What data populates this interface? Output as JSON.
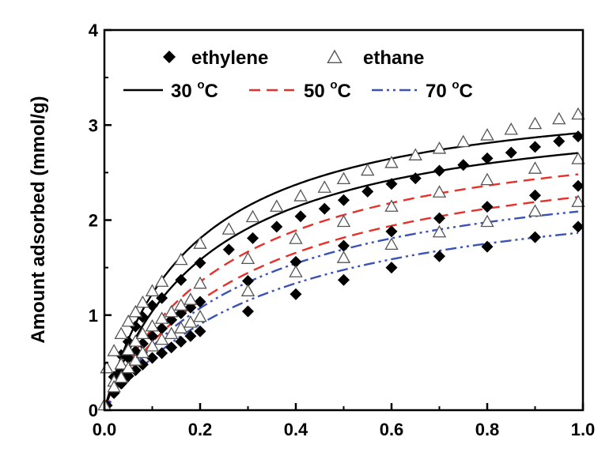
{
  "chart_data": {
    "type": "scatter",
    "xlim": [
      0,
      1.0
    ],
    "ylim": [
      0,
      4
    ],
    "x_ticks": [
      "0.0",
      "0.2",
      "0.4",
      "0.6",
      "0.8",
      "1.0"
    ],
    "y_ticks": [
      "0",
      "1",
      "2",
      "3",
      "4"
    ],
    "ylabel": "Amount adsorbed (mmol/g)",
    "xlabel": "",
    "grid": false,
    "legend": {
      "placement": "top-left",
      "markers": [
        {
          "label": "ethylene",
          "marker": "filled-diamond"
        },
        {
          "label": "ethane",
          "marker": "open-triangle"
        }
      ],
      "lines": [
        {
          "label": "30",
          "unit": "C",
          "degree": "o",
          "style": "solid",
          "color": "#000000"
        },
        {
          "label": "50",
          "unit": "C",
          "degree": "o",
          "style": "dashed",
          "color": "#e8302a"
        },
        {
          "label": "70",
          "unit": "C",
          "degree": "o",
          "style": "dash-dot-dot",
          "color": "#3a52b4"
        }
      ]
    },
    "series": [
      {
        "gas": "ethylene",
        "temperature": 30,
        "marker": "filled-diamond",
        "x": [
          0.005,
          0.02,
          0.035,
          0.05,
          0.065,
          0.08,
          0.1,
          0.12,
          0.16,
          0.2,
          0.26,
          0.31,
          0.36,
          0.41,
          0.46,
          0.5,
          0.55,
          0.6,
          0.65,
          0.7,
          0.75,
          0.8,
          0.85,
          0.9,
          0.95,
          0.99
        ],
        "y": [
          0.05,
          0.35,
          0.58,
          0.72,
          0.88,
          0.98,
          1.1,
          1.18,
          1.37,
          1.55,
          1.69,
          1.81,
          1.93,
          2.04,
          2.12,
          2.21,
          2.3,
          2.38,
          2.44,
          2.52,
          2.58,
          2.65,
          2.71,
          2.77,
          2.83,
          2.88
        ]
      },
      {
        "gas": "ethane",
        "temperature": 30,
        "marker": "open-triangle",
        "x": [
          0.0,
          0.005,
          0.02,
          0.035,
          0.05,
          0.065,
          0.08,
          0.1,
          0.12,
          0.16,
          0.2,
          0.26,
          0.31,
          0.36,
          0.41,
          0.46,
          0.5,
          0.55,
          0.6,
          0.65,
          0.7,
          0.75,
          0.8,
          0.85,
          0.9,
          0.95,
          0.99
        ],
        "y": [
          0.05,
          0.44,
          0.62,
          0.8,
          0.93,
          1.03,
          1.13,
          1.25,
          1.35,
          1.58,
          1.75,
          1.9,
          2.03,
          2.14,
          2.25,
          2.34,
          2.43,
          2.52,
          2.6,
          2.68,
          2.75,
          2.82,
          2.89,
          2.95,
          3.01,
          3.06,
          3.11
        ]
      },
      {
        "gas": "ethylene",
        "temperature": 50,
        "marker": "filled-diamond",
        "x": [
          0.02,
          0.035,
          0.05,
          0.065,
          0.08,
          0.1,
          0.12,
          0.14,
          0.16,
          0.18,
          0.2,
          0.3,
          0.4,
          0.5,
          0.6,
          0.7,
          0.8,
          0.9,
          0.99
        ],
        "y": [
          0.2,
          0.4,
          0.55,
          0.62,
          0.7,
          0.78,
          0.86,
          0.95,
          1.02,
          1.08,
          1.14,
          1.36,
          1.56,
          1.73,
          1.88,
          2.02,
          2.14,
          2.26,
          2.36
        ]
      },
      {
        "gas": "ethane",
        "temperature": 50,
        "marker": "open-triangle",
        "x": [
          0.02,
          0.035,
          0.05,
          0.065,
          0.08,
          0.1,
          0.12,
          0.14,
          0.16,
          0.18,
          0.2,
          0.3,
          0.4,
          0.5,
          0.6,
          0.7,
          0.8,
          0.9,
          0.99
        ],
        "y": [
          0.3,
          0.48,
          0.63,
          0.72,
          0.8,
          0.88,
          0.96,
          1.03,
          1.1,
          1.16,
          1.33,
          1.59,
          1.8,
          1.98,
          2.14,
          2.29,
          2.42,
          2.54,
          2.64
        ]
      },
      {
        "gas": "ethylene",
        "temperature": 70,
        "marker": "filled-diamond",
        "x": [
          0.02,
          0.035,
          0.05,
          0.065,
          0.08,
          0.1,
          0.12,
          0.14,
          0.16,
          0.18,
          0.2,
          0.3,
          0.4,
          0.5,
          0.6,
          0.7,
          0.8,
          0.9,
          0.99
        ],
        "y": [
          0.18,
          0.28,
          0.36,
          0.42,
          0.48,
          0.55,
          0.6,
          0.66,
          0.72,
          0.78,
          0.83,
          1.04,
          1.22,
          1.37,
          1.5,
          1.62,
          1.72,
          1.82,
          1.93
        ]
      },
      {
        "gas": "ethane",
        "temperature": 70,
        "marker": "open-triangle",
        "x": [
          0.02,
          0.035,
          0.05,
          0.065,
          0.08,
          0.1,
          0.12,
          0.14,
          0.16,
          0.18,
          0.2,
          0.3,
          0.4,
          0.5,
          0.6,
          0.7,
          0.8,
          0.9,
          0.99
        ],
        "y": [
          0.24,
          0.34,
          0.44,
          0.52,
          0.6,
          0.67,
          0.74,
          0.8,
          0.86,
          0.92,
          0.98,
          1.25,
          1.45,
          1.6,
          1.74,
          1.87,
          1.98,
          2.09,
          2.19
        ]
      }
    ],
    "fit_curves": [
      {
        "gas": "ethane",
        "temperature": 30,
        "style": "solid",
        "color": "#000000",
        "qmax": 3.45,
        "b": 5.5
      },
      {
        "gas": "ethylene",
        "temperature": 30,
        "style": "solid",
        "color": "#000000",
        "qmax": 3.3,
        "b": 4.6
      },
      {
        "gas": "ethane",
        "temperature": 50,
        "style": "dashed",
        "color": "#e8302a",
        "qmax": 3.15,
        "b": 3.75
      },
      {
        "gas": "ethylene",
        "temperature": 50,
        "style": "dashed",
        "color": "#e8302a",
        "qmax": 2.95,
        "b": 3.2
      },
      {
        "gas": "ethane",
        "temperature": 70,
        "style": "dash-dot-dot",
        "color": "#3a52b4",
        "qmax": 2.75,
        "b": 3.2
      },
      {
        "gas": "ethylene",
        "temperature": 70,
        "style": "dash-dot-dot",
        "color": "#3a52b4",
        "qmax": 2.55,
        "b": 2.75
      }
    ]
  }
}
